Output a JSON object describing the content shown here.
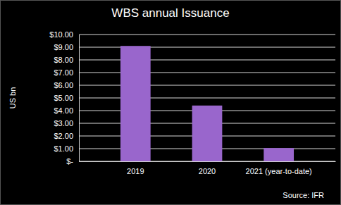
{
  "chart_data": {
    "type": "bar",
    "title": "WBS annual Issuance",
    "y_label": "US bn",
    "annotations": [
      "Source: IFR"
    ],
    "categories": [
      "2019",
      "2020",
      "2021 (year-to-date)"
    ],
    "values": [
      9.1,
      4.4,
      1.05
    ],
    "color": "#9966cc",
    "ylim": [
      0,
      10
    ],
    "yticks": [
      {
        "value": 0,
        "label": "$-"
      },
      {
        "value": 1,
        "label": "$1.00"
      },
      {
        "value": 2,
        "label": "$2.00"
      },
      {
        "value": 3,
        "label": "$3.00"
      },
      {
        "value": 4,
        "label": "$4.00"
      },
      {
        "value": 5,
        "label": "$5.00"
      },
      {
        "value": 6,
        "label": "$6.00"
      },
      {
        "value": 7,
        "label": "$7.00"
      },
      {
        "value": 8,
        "label": "$8.00"
      },
      {
        "value": 9,
        "label": "$9.00"
      },
      {
        "value": 10,
        "label": "$10.00"
      }
    ],
    "grid": true
  }
}
